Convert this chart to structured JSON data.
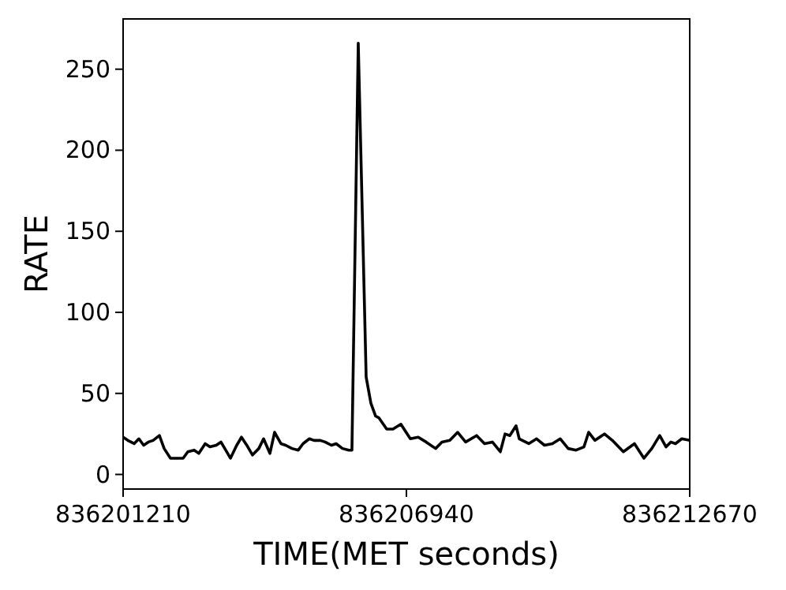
{
  "chart_data": {
    "type": "line",
    "xlabel": "TIME(MET seconds)",
    "ylabel": "RATE",
    "xlim": [
      836201210,
      836212670
    ],
    "xticks": [
      836201210,
      836206940,
      836212670
    ],
    "ylim": [
      -9,
      281
    ],
    "yticks": [
      0,
      50,
      100,
      150,
      200,
      250
    ],
    "grid": false,
    "marker": "none",
    "line_style": "solid",
    "series": [
      {
        "color": "#000000",
        "x": [
          836201210,
          836201306,
          836201433,
          836201529,
          836201625,
          836201721,
          836201816,
          836201944,
          836202040,
          836202168,
          836202295,
          836202423,
          836202519,
          836202646,
          836202742,
          836202870,
          836202966,
          836203093,
          836203189,
          836203285,
          836203381,
          836203508,
          836203604,
          836203732,
          836203827,
          836203955,
          836204051,
          836204179,
          836204274,
          836204402,
          836204498,
          836204625,
          836204753,
          836204849,
          836204977,
          836205072,
          836205200,
          836205296,
          836205423,
          836205519,
          836205647,
          836205775,
          836205838,
          836205966,
          836206126,
          836206221,
          836206317,
          836206381,
          836206541,
          836206668,
          836206828,
          836207019,
          836207179,
          836207339,
          836207530,
          836207658,
          836207818,
          836207977,
          836208137,
          836208360,
          836208520,
          836208679,
          836208839,
          836208935,
          836209031,
          836209158,
          836209222,
          836209414,
          836209573,
          836209733,
          836209892,
          836210052,
          836210212,
          836210371,
          836210531,
          836210626,
          836210754,
          836210946,
          836211105,
          836211328,
          836211552,
          836211744,
          836211903,
          836212063,
          836212191,
          836212287,
          836212382,
          836212510,
          836212670
        ],
        "values": [
          23,
          21,
          19,
          22,
          18,
          20,
          21,
          24,
          16,
          10,
          10,
          10,
          14,
          15,
          13,
          19,
          17,
          18,
          20,
          15,
          10,
          18,
          23,
          17,
          12,
          16,
          22,
          13,
          26,
          19,
          18,
          16,
          15,
          19,
          22,
          21,
          21,
          20,
          18,
          19,
          16,
          15,
          15,
          266,
          60,
          44,
          36,
          35,
          28,
          28,
          31,
          22,
          23,
          20,
          16,
          20,
          21,
          26,
          20,
          24,
          19,
          20,
          14,
          25,
          24,
          30,
          22,
          19,
          22,
          18,
          19,
          22,
          16,
          15,
          17,
          26,
          21,
          25,
          21,
          14,
          19,
          10,
          16,
          24,
          17,
          20,
          19,
          22,
          21
        ]
      }
    ]
  }
}
